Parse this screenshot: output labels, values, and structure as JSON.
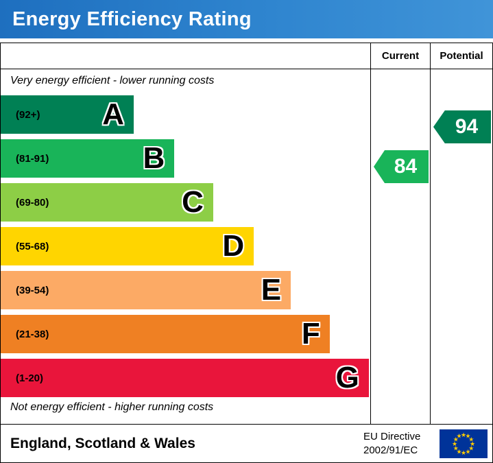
{
  "header": {
    "title": "Energy Efficiency Rating"
  },
  "columns": {
    "current": "Current",
    "potential": "Potential"
  },
  "chart": {
    "top_caption": "Very energy efficient - lower running costs",
    "bottom_caption": "Not energy efficient - higher running costs",
    "bands": [
      {
        "letter": "A",
        "range": "(92+)",
        "color": "#008054",
        "width_pct": 36
      },
      {
        "letter": "B",
        "range": "(81-91)",
        "color": "#19b459",
        "width_pct": 47
      },
      {
        "letter": "C",
        "range": "(69-80)",
        "color": "#8dce46",
        "width_pct": 57.5
      },
      {
        "letter": "D",
        "range": "(55-68)",
        "color": "#ffd500",
        "width_pct": 68.5
      },
      {
        "letter": "E",
        "range": "(39-54)",
        "color": "#fcaa65",
        "width_pct": 78.5
      },
      {
        "letter": "F",
        "range": "(21-38)",
        "color": "#ef8023",
        "width_pct": 89
      },
      {
        "letter": "G",
        "range": "(1-20)",
        "color": "#e9153b",
        "width_pct": 99.6
      }
    ],
    "current": {
      "value": "84",
      "band": "B",
      "color": "#19b459"
    },
    "potential": {
      "value": "94",
      "band": "A",
      "color": "#008054"
    }
  },
  "footer": {
    "region": "England, Scotland & Wales",
    "directive_line1": "EU Directive",
    "directive_line2": "2002/91/EC"
  },
  "chart_data": {
    "type": "bar",
    "title": "Energy Efficiency Rating",
    "categories": [
      "A",
      "B",
      "C",
      "D",
      "E",
      "F",
      "G"
    ],
    "band_ranges": [
      "92+",
      "81-91",
      "69-80",
      "55-68",
      "39-54",
      "21-38",
      "1-20"
    ],
    "band_colors": [
      "#008054",
      "#19b459",
      "#8dce46",
      "#ffd500",
      "#fcaa65",
      "#ef8023",
      "#e9153b"
    ],
    "bar_lengths_pct": [
      36,
      47,
      57.5,
      68.5,
      78.5,
      89,
      99.6
    ],
    "current_rating": 84,
    "current_band": "B",
    "potential_rating": 94,
    "potential_band": "A",
    "column_headers": [
      "Current",
      "Potential"
    ],
    "annotation_top": "Very energy efficient - lower running costs",
    "annotation_bottom": "Not energy efficient - higher running costs",
    "footer_region": "England, Scotland & Wales",
    "footer_directive": "EU Directive 2002/91/EC",
    "legend_position": "none",
    "grid": false
  }
}
